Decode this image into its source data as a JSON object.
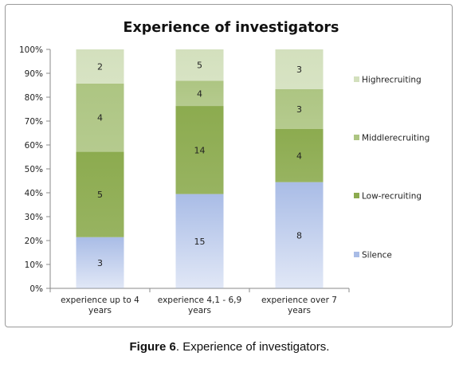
{
  "chart_data": {
    "type": "bar",
    "stacked": true,
    "percent_stacked": true,
    "title": "Experience of investigators",
    "categories": [
      "experience up to 4 years",
      "experience  4,1 -  6,9 years",
      "experience over  7 years"
    ],
    "series": [
      {
        "name": "Silence",
        "values": [
          3,
          15,
          8
        ],
        "color": "#a9bce6"
      },
      {
        "name": "Low-recruiting",
        "values": [
          5,
          14,
          4
        ],
        "color": "#8cab4f"
      },
      {
        "name": "Middlerecruiting",
        "values": [
          4,
          4,
          3
        ],
        "color": "#adc582"
      },
      {
        "name": "Highrecruiting",
        "values": [
          2,
          5,
          3
        ],
        "color": "#d3e0bd"
      }
    ],
    "y_ticks": [
      "0%",
      "10%",
      "20%",
      "30%",
      "40%",
      "50%",
      "60%",
      "70%",
      "80%",
      "90%",
      "100%"
    ],
    "ylim": [
      0,
      100
    ],
    "legend_position": "right",
    "grid": false
  },
  "caption": {
    "label": "Figure 6",
    "text": ". Experience of  investigators."
  }
}
